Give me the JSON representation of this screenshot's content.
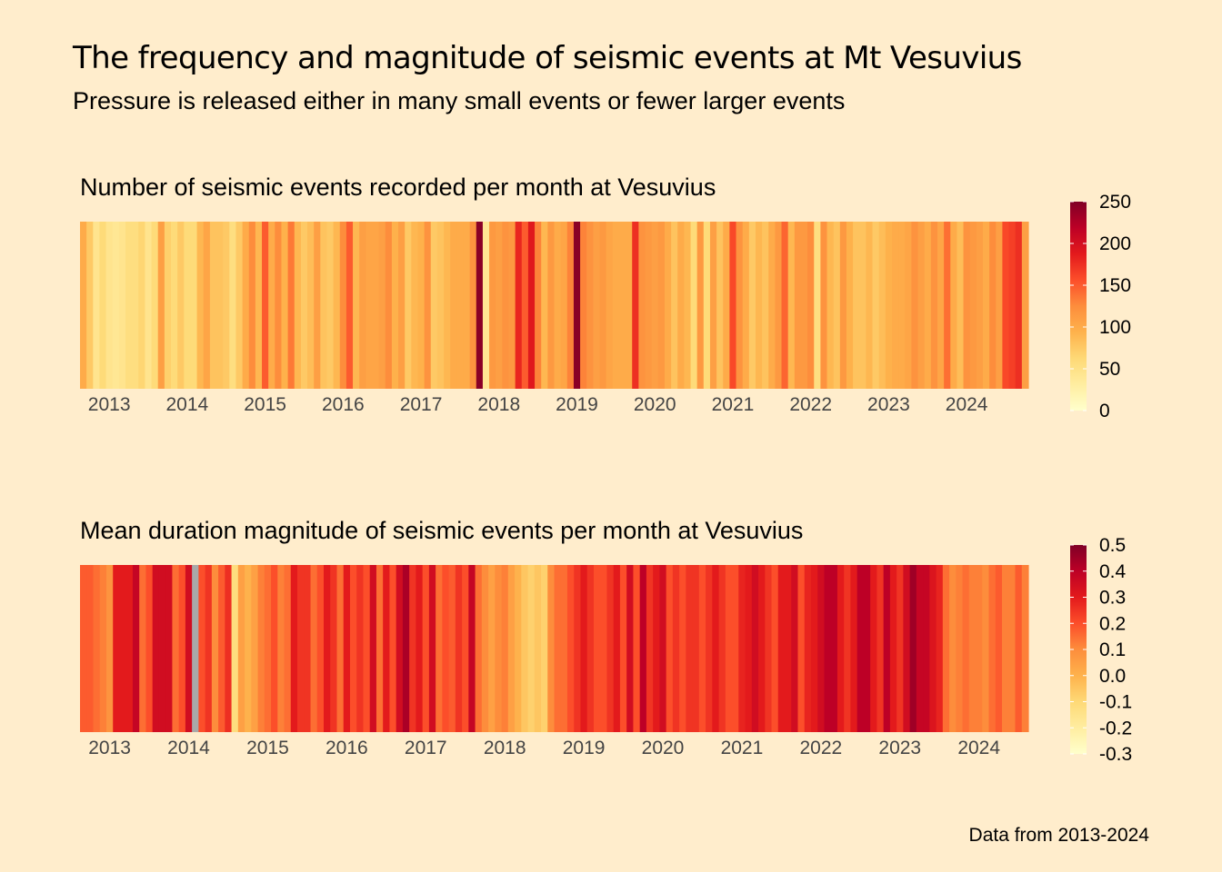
{
  "header": {
    "title": "The frequency and magnitude of seismic events at Mt Vesuvius",
    "subtitle": "Pressure is released either in many small events or fewer larger events"
  },
  "footer": {
    "caption": "Data from 2013-2024"
  },
  "colors": {
    "background": "#FFEDCC",
    "na_color": "#A9A9A9",
    "ylorrd_scale": [
      "#FFFFCC",
      "#FFEDA0",
      "#FED976",
      "#FEB24C",
      "#FD8D3C",
      "#FC4E2A",
      "#E31A1C",
      "#BD0026",
      "#800026"
    ]
  },
  "chart_data": [
    {
      "type": "heatmap",
      "title": "Number of seismic events recorded per month at Vesuvius",
      "x_start": "2012-09",
      "x_step": "month",
      "x_tick_labels": [
        "2013",
        "2014",
        "2015",
        "2016",
        "2017",
        "2018",
        "2019",
        "2020",
        "2021",
        "2022",
        "2023",
        "2024"
      ],
      "legend_ticks": [
        "250",
        "200",
        "150",
        "100",
        "50",
        "0"
      ],
      "legend_range": [
        0,
        250
      ],
      "values": [
        100,
        75,
        45,
        60,
        45,
        40,
        45,
        55,
        55,
        65,
        45,
        60,
        110,
        70,
        60,
        75,
        60,
        60,
        90,
        105,
        80,
        80,
        75,
        55,
        75,
        100,
        125,
        90,
        150,
        100,
        125,
        95,
        135,
        90,
        75,
        85,
        110,
        80,
        75,
        90,
        125,
        150,
        90,
        110,
        105,
        105,
        110,
        125,
        95,
        110,
        75,
        90,
        95,
        120,
        75,
        80,
        90,
        100,
        100,
        100,
        120,
        245,
        40,
        115,
        110,
        120,
        115,
        180,
        150,
        190,
        130,
        90,
        115,
        100,
        105,
        130,
        245,
        130,
        120,
        110,
        115,
        105,
        100,
        100,
        100,
        175,
        120,
        115,
        110,
        115,
        100,
        80,
        100,
        90,
        60,
        115,
        60,
        110,
        80,
        100,
        160,
        120,
        100,
        75,
        90,
        80,
        100,
        115,
        145,
        90,
        115,
        115,
        125,
        55,
        120,
        90,
        80,
        115,
        95,
        80,
        80,
        90,
        75,
        85,
        95,
        100,
        100,
        105,
        120,
        110,
        100,
        120,
        105,
        140,
        100,
        85,
        120,
        115,
        110,
        100,
        125,
        110,
        160,
        165,
        175,
        110
      ]
    },
    {
      "type": "heatmap",
      "title": "Mean duration magnitude of seismic events per month at Vesuvius",
      "x_start": "2012-09",
      "x_step": "month",
      "x_tick_labels": [
        "2013",
        "2014",
        "2015",
        "2016",
        "2017",
        "2018",
        "2019",
        "2020",
        "2021",
        "2022",
        "2023",
        "2024"
      ],
      "legend_ticks": [
        "0.5",
        "0.4",
        "0.3",
        "0.2",
        "0.1",
        "0.0",
        "-0.1",
        "-0.2",
        "-0.3"
      ],
      "legend_range": [
        -0.3,
        0.5
      ],
      "values": [
        0.18,
        0.18,
        0.15,
        0.12,
        0.08,
        0.3,
        0.3,
        0.3,
        0.38,
        0.15,
        0.2,
        0.35,
        0.35,
        0.35,
        0.15,
        0.2,
        0.35,
        null,
        0.2,
        0.25,
        0.1,
        0.18,
        0.26,
        -0.12,
        0.05,
        0.0,
        0.05,
        0.12,
        0.15,
        0.2,
        0.12,
        0.15,
        0.3,
        0.25,
        0.25,
        0.15,
        0.2,
        0.3,
        0.25,
        0.15,
        0.3,
        0.2,
        0.25,
        0.2,
        0.35,
        0.15,
        0.3,
        0.2,
        0.35,
        0.43,
        0.25,
        0.3,
        0.2,
        0.35,
        0.15,
        0.2,
        0.18,
        0.25,
        0.2,
        0.38,
        0.15,
        0.1,
        0.05,
        0.1,
        0.12,
        0.05,
        0.0,
        -0.05,
        -0.08,
        -0.05,
        -0.08,
        0.1,
        0.15,
        0.15,
        0.2,
        0.25,
        0.3,
        0.25,
        0.2,
        0.2,
        0.25,
        0.3,
        0.2,
        0.35,
        0.2,
        0.4,
        0.25,
        0.3,
        0.35,
        0.2,
        0.25,
        0.2,
        0.25,
        0.25,
        0.2,
        0.25,
        0.3,
        0.25,
        0.2,
        0.2,
        0.28,
        0.3,
        0.35,
        0.3,
        0.25,
        0.2,
        0.3,
        0.3,
        0.35,
        0.2,
        0.28,
        0.3,
        0.35,
        0.4,
        0.4,
        0.3,
        0.25,
        0.3,
        0.4,
        0.4,
        0.3,
        0.25,
        0.4,
        0.3,
        0.25,
        0.35,
        0.45,
        0.38,
        0.38,
        0.32,
        0.28,
        0.15,
        0.1,
        0.12,
        0.15,
        0.12,
        0.12,
        0.1,
        0.15,
        0.18,
        0.12,
        0.12,
        0.18,
        0.12
      ]
    }
  ]
}
